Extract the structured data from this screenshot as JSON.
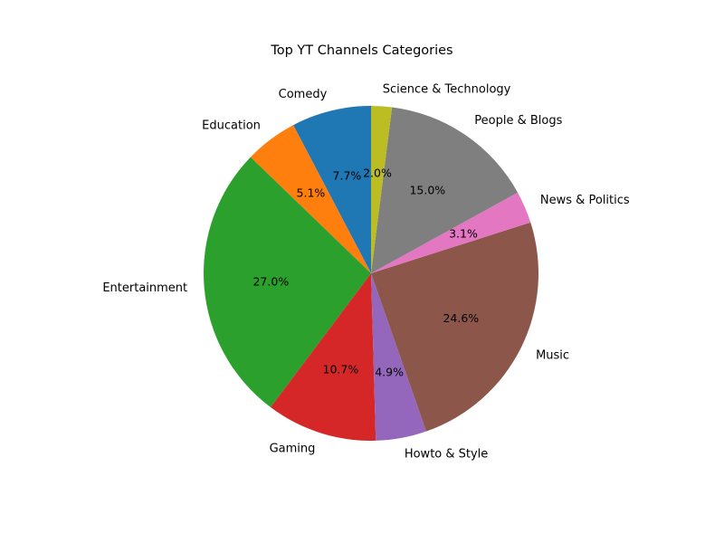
{
  "chart_data": {
    "type": "pie",
    "title": "Top YT Channels Categories",
    "start_angle_deg": 90,
    "direction": "counterclockwise",
    "slices": [
      {
        "label": "Comedy",
        "value": 7.7,
        "pct_label": "7.7%",
        "color": "#1f77b4"
      },
      {
        "label": "Education",
        "value": 5.1,
        "pct_label": "5.1%",
        "color": "#ff7f0e"
      },
      {
        "label": "Entertainment",
        "value": 27.0,
        "pct_label": "27.0%",
        "color": "#2ca02c"
      },
      {
        "label": "Gaming",
        "value": 10.7,
        "pct_label": "10.7%",
        "color": "#d62728"
      },
      {
        "label": "Howto & Style",
        "value": 4.9,
        "pct_label": "4.9%",
        "color": "#9467bd"
      },
      {
        "label": "Music",
        "value": 24.6,
        "pct_label": "24.6%",
        "color": "#8c564b"
      },
      {
        "label": "News & Politics",
        "value": 3.1,
        "pct_label": "3.1%",
        "color": "#e377c2"
      },
      {
        "label": "People & Blogs",
        "value": 15.0,
        "pct_label": "15.0%",
        "color": "#7f7f7f"
      },
      {
        "label": "Science & Technology",
        "value": 2.0,
        "pct_label": "2.0%",
        "color": "#bcbd22"
      }
    ]
  }
}
